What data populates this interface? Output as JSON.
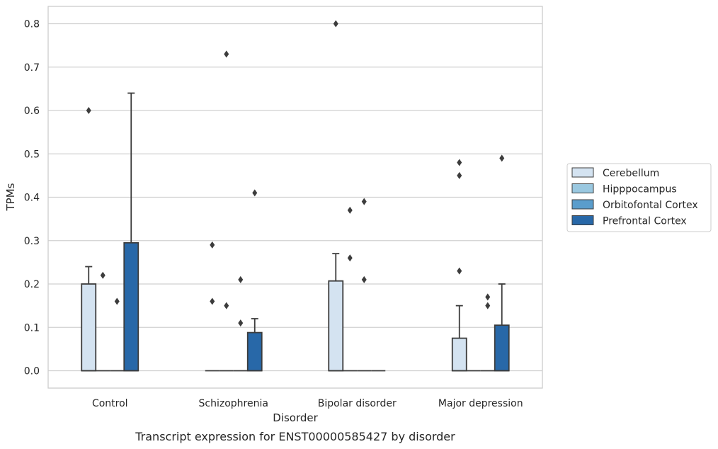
{
  "chart_data": {
    "type": "box",
    "caption": "Transcript expression for ENST00000585427 by disorder",
    "xlabel": "Disorder",
    "ylabel": "TPMs",
    "ylim": [
      -0.04,
      0.84
    ],
    "yticks": [
      0.0,
      0.1,
      0.2,
      0.3,
      0.4,
      0.5,
      0.6,
      0.7,
      0.8
    ],
    "ytick_labels": [
      "0.0",
      "0.1",
      "0.2",
      "0.3",
      "0.4",
      "0.5",
      "0.6",
      "0.7",
      "0.8"
    ],
    "grid": "horizontal",
    "legend_position": "right",
    "categories": [
      "Control",
      "Schizophrenia",
      "Bipolar disorder",
      "Major depression"
    ],
    "series": [
      {
        "name": "Cerebellum",
        "color": "#d4e3f1",
        "boxes": [
          {
            "q1": 0.0,
            "median": 0.0,
            "q3": 0.2,
            "whisker_low": 0.0,
            "whisker_high": 0.24,
            "outliers": [
              0.6
            ]
          },
          {
            "q1": 0.0,
            "median": 0.0,
            "q3": 0.0,
            "whisker_low": 0.0,
            "whisker_high": 0.0,
            "outliers": [
              0.29,
              0.16
            ]
          },
          {
            "q1": 0.0,
            "median": 0.0,
            "q3": 0.207,
            "whisker_low": 0.0,
            "whisker_high": 0.27,
            "outliers": [
              0.8
            ]
          },
          {
            "q1": 0.0,
            "median": 0.0,
            "q3": 0.075,
            "whisker_low": 0.0,
            "whisker_high": 0.15,
            "outliers": [
              0.48,
              0.45,
              0.23
            ]
          }
        ]
      },
      {
        "name": "Hipppocampus",
        "color": "#9ac8e0",
        "boxes": [
          {
            "q1": 0.0,
            "median": 0.0,
            "q3": 0.0,
            "whisker_low": 0.0,
            "whisker_high": 0.0,
            "outliers": [
              0.22
            ]
          },
          {
            "q1": 0.0,
            "median": 0.0,
            "q3": 0.0,
            "whisker_low": 0.0,
            "whisker_high": 0.0,
            "outliers": [
              0.73,
              0.15
            ]
          },
          {
            "q1": 0.0,
            "median": 0.0,
            "q3": 0.0,
            "whisker_low": 0.0,
            "whisker_high": 0.0,
            "outliers": [
              0.37,
              0.26
            ]
          },
          {
            "q1": 0.0,
            "median": 0.0,
            "q3": 0.0,
            "whisker_low": 0.0,
            "whisker_high": 0.0,
            "outliers": []
          }
        ]
      },
      {
        "name": "Orbitofontal Cortex",
        "color": "#5a9dcc",
        "boxes": [
          {
            "q1": 0.0,
            "median": 0.0,
            "q3": 0.0,
            "whisker_low": 0.0,
            "whisker_high": 0.0,
            "outliers": [
              0.16
            ]
          },
          {
            "q1": 0.0,
            "median": 0.0,
            "q3": 0.0,
            "whisker_low": 0.0,
            "whisker_high": 0.0,
            "outliers": [
              0.21,
              0.11
            ]
          },
          {
            "q1": 0.0,
            "median": 0.0,
            "q3": 0.0,
            "whisker_low": 0.0,
            "whisker_high": 0.0,
            "outliers": [
              0.39,
              0.21
            ]
          },
          {
            "q1": 0.0,
            "median": 0.0,
            "q3": 0.0,
            "whisker_low": 0.0,
            "whisker_high": 0.0,
            "outliers": [
              0.17,
              0.15
            ]
          }
        ]
      },
      {
        "name": "Prefrontal Cortex",
        "color": "#2868a8",
        "boxes": [
          {
            "q1": 0.0,
            "median": 0.0,
            "q3": 0.295,
            "whisker_low": 0.0,
            "whisker_high": 0.64,
            "outliers": []
          },
          {
            "q1": 0.0,
            "median": 0.0,
            "q3": 0.088,
            "whisker_low": 0.0,
            "whisker_high": 0.12,
            "outliers": [
              0.41
            ]
          },
          {
            "q1": 0.0,
            "median": 0.0,
            "q3": 0.0,
            "whisker_low": 0.0,
            "whisker_high": 0.0,
            "outliers": []
          },
          {
            "q1": 0.0,
            "median": 0.0,
            "q3": 0.105,
            "whisker_low": 0.0,
            "whisker_high": 0.2,
            "outliers": [
              0.49
            ]
          }
        ]
      }
    ]
  }
}
